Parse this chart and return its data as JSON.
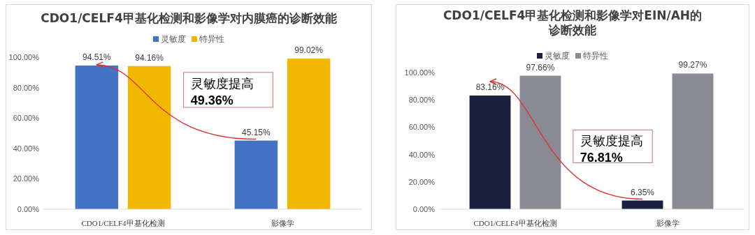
{
  "chart_data": [
    {
      "type": "bar",
      "title": "CDO1/CELF4甲基化检测和影像学对内膜癌的诊断效能",
      "categories": [
        "CDO1/CELF4甲基化检测",
        "影像学"
      ],
      "series": [
        {
          "name": "灵敏度",
          "color": "#4472c4",
          "values": [
            94.51,
            45.15
          ],
          "value_labels": [
            "94.51%",
            "45.15%"
          ]
        },
        {
          "name": "特异性",
          "color": "#f0b800",
          "values": [
            94.16,
            99.02
          ],
          "value_labels": [
            "94.16%",
            "99.02%"
          ]
        }
      ],
      "ylim": [
        0,
        100
      ],
      "yticks": [
        {
          "value": 0,
          "label": "0.00%"
        },
        {
          "value": 20,
          "label": "20.00%"
        },
        {
          "value": 40,
          "label": "40.00%"
        },
        {
          "value": 60,
          "label": "60.00%"
        },
        {
          "value": 80,
          "label": "80.00%"
        },
        {
          "value": 100,
          "label": "100.00%"
        }
      ],
      "legend": "top",
      "annotations": [
        "灵敏度提高**49.36%**"
      ]
    },
    {
      "type": "bar",
      "title": "CDO1/CELF4甲基化检测和影像学对EIN/AH的诊断效能",
      "categories": [
        "CDO1/CELF4甲基化检测",
        "影像学"
      ],
      "series": [
        {
          "name": "灵敏度",
          "color": "#19213f",
          "values": [
            83.16,
            6.35
          ],
          "value_labels": [
            "83.16%",
            "6.35%"
          ]
        },
        {
          "name": "特异性",
          "color": "#8a8a94",
          "values": [
            97.66,
            99.27
          ],
          "value_labels": [
            "97.66%",
            "99.27%"
          ]
        }
      ],
      "ylim": [
        0,
        100
      ],
      "yticks": [
        {
          "value": 0,
          "label": "0.00%"
        },
        {
          "value": 20,
          "label": "20.00%"
        },
        {
          "value": 40,
          "label": "40.00%"
        },
        {
          "value": 60,
          "label": "60.00%"
        },
        {
          "value": 80,
          "label": "80.00%"
        },
        {
          "value": 100,
          "label": "100.00%"
        }
      ],
      "legend": "top",
      "annotations": [
        "灵敏度提高**76.81%**"
      ]
    }
  ]
}
